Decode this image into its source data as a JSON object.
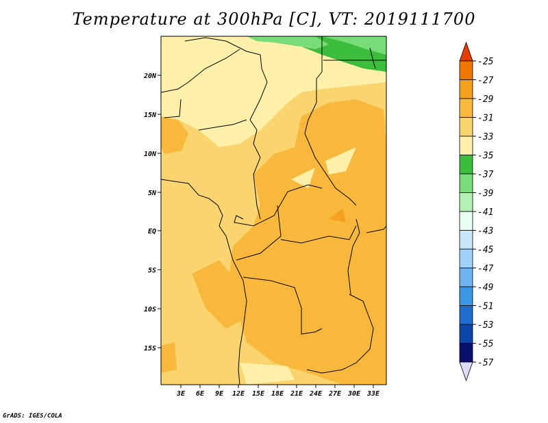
{
  "title": "Temperature at 300hPa [C], VT: 2019111700",
  "credit": "GrADS: IGES/COLA",
  "map": {
    "lon_ticks": [
      "3E",
      "6E",
      "9E",
      "12E",
      "15E",
      "18E",
      "21E",
      "24E",
      "27E",
      "30E",
      "33E"
    ],
    "lat_ticks": [
      "20N",
      "15N",
      "10N",
      "5N",
      "EQ",
      "5S",
      "10S",
      "15S"
    ]
  },
  "colorbar": {
    "labels": [
      "-25",
      "-27",
      "-29",
      "-31",
      "-33",
      "-35",
      "-37",
      "-39",
      "-41",
      "-43",
      "-45",
      "-47",
      "-49",
      "-51",
      "-53",
      "-55",
      "-57"
    ],
    "colors": [
      "#e63c00",
      "#f07800",
      "#f5a01e",
      "#f7b83c",
      "#fad46e",
      "#fef0a8",
      "#3cbe3c",
      "#78dc78",
      "#b4f0b4",
      "#e6fff0",
      "#c8e6fa",
      "#a0d2fa",
      "#6eb4f0",
      "#3c96e6",
      "#1e6ed2",
      "#0a46aa",
      "#08106e",
      "#dcdcf8"
    ]
  }
}
